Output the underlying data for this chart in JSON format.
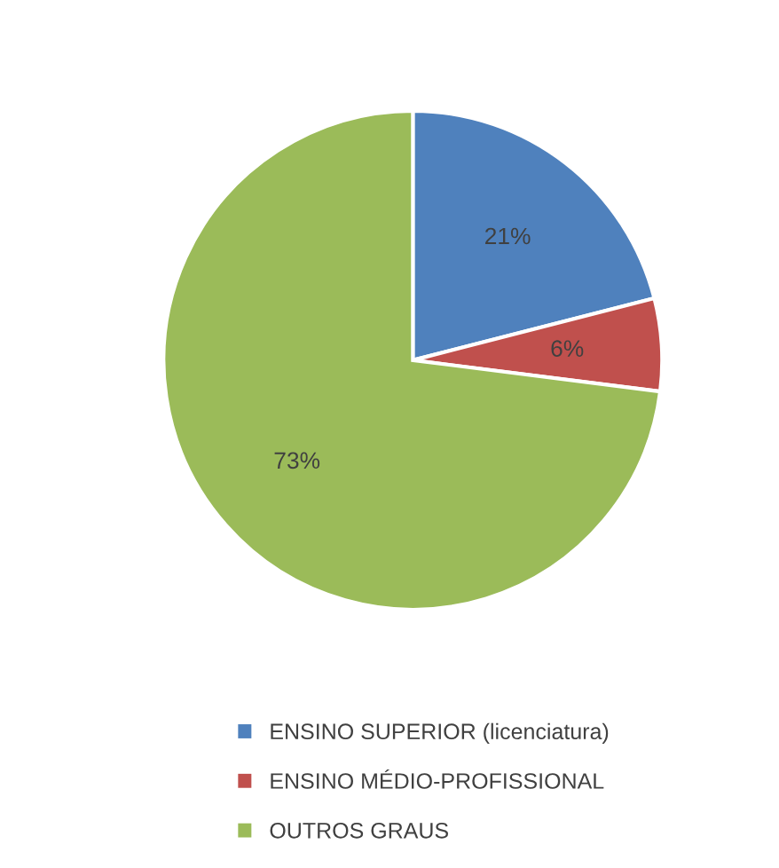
{
  "chart_data": {
    "type": "pie",
    "categories": [
      "ENSINO SUPERIOR (licenciatura)",
      "ENSINO MÉDIO-PROFISSIONAL",
      "OUTROS GRAUS"
    ],
    "values": [
      21,
      6,
      73
    ],
    "colors": [
      "#4f81bd",
      "#c0504d",
      "#9bbb59"
    ],
    "value_labels": [
      "21%",
      "6%",
      "73%"
    ],
    "legend": "bottom"
  }
}
